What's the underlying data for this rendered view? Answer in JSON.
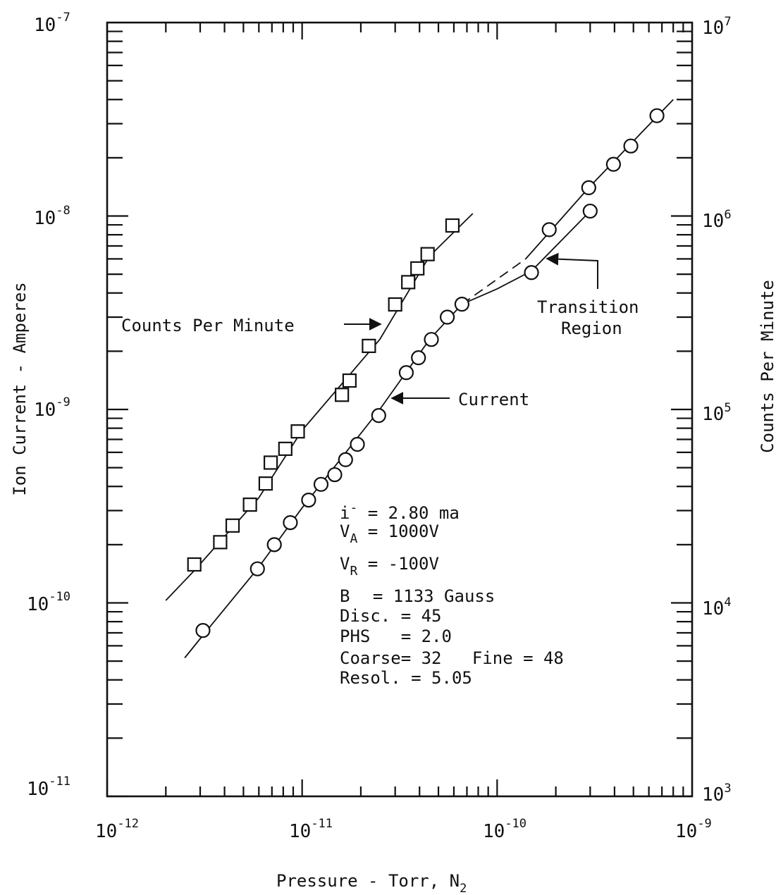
{
  "chart_data": {
    "type": "scatter",
    "xlabel": "Pressure - Torr, N",
    "xlabel_sub": "2",
    "ylabel": "Ion Current - Amperes",
    "y2label": "Counts Per Minute",
    "x_scale": "log",
    "y_scale": "log",
    "xlim": [
      1e-12,
      1e-09
    ],
    "ylim": [
      1e-11,
      1e-07
    ],
    "y2lim": [
      1000,
      10000000
    ],
    "grid": false,
    "x_ticks": [
      {
        "mant": "10",
        "exp": "-12"
      },
      {
        "mant": "10",
        "exp": "-11"
      },
      {
        "mant": "10",
        "exp": "-10"
      },
      {
        "mant": "10",
        "exp": "-9"
      }
    ],
    "y_ticks": [
      {
        "mant": "10",
        "exp": "-11"
      },
      {
        "mant": "10",
        "exp": "-10"
      },
      {
        "mant": "10",
        "exp": "-9"
      },
      {
        "mant": "10",
        "exp": "-8"
      },
      {
        "mant": "10",
        "exp": "-7"
      }
    ],
    "y2_ticks": [
      {
        "mant": "10",
        "exp": "3"
      },
      {
        "mant": "10",
        "exp": "4"
      },
      {
        "mant": "10",
        "exp": "5"
      },
      {
        "mant": "10",
        "exp": "6"
      },
      {
        "mant": "10",
        "exp": "7"
      }
    ],
    "series": [
      {
        "name": "Counts Per Minute",
        "marker": "square",
        "axis": "right",
        "x": [
          2.8e-12,
          3.8e-12,
          4.4e-12,
          5.4e-12,
          6.5e-12,
          6.9e-12,
          8.2e-12,
          9.5e-12,
          1.6e-11,
          1.75e-11,
          2.2e-11,
          3e-11,
          3.5e-11,
          3.9e-11,
          4.4e-11,
          5.9e-11
        ],
        "y": [
          15800,
          20600,
          25100,
          32200,
          41400,
          53100,
          62600,
          77000,
          119000,
          141000,
          213000,
          349000,
          455000,
          536000,
          635000,
          893000
        ]
      },
      {
        "name": "Current",
        "marker": "circle",
        "axis": "left",
        "x": [
          3.1e-12,
          5.9e-12,
          7.2e-12,
          8.7e-12,
          1.08e-11,
          1.25e-11,
          1.47e-11,
          1.67e-11,
          1.92e-11,
          2.47e-11,
          3.42e-11,
          3.95e-11,
          4.6e-11,
          5.55e-11,
          6.6e-11
        ],
        "y": [
          7.2e-11,
          1.5e-10,
          2e-10,
          2.6e-10,
          3.4e-10,
          4.1e-10,
          4.6e-10,
          5.5e-10,
          6.6e-10,
          9.3e-10,
          1.55e-09,
          1.85e-09,
          2.3e-09,
          3e-09,
          3.5e-09
        ]
      },
      {
        "name": "",
        "marker": "circle",
        "axis": "left",
        "x": [
          1.5e-10,
          3e-10
        ],
        "y": [
          5.1e-09,
          1.06e-08
        ]
      },
      {
        "name": "",
        "marker": "circle",
        "axis": "left",
        "x": [
          1.85e-10,
          2.95e-10,
          3.95e-10,
          4.85e-10,
          6.6e-10
        ],
        "y": [
          8.5e-09,
          1.4e-08,
          1.85e-08,
          2.3e-08,
          3.3e-08
        ]
      }
    ],
    "fit_lines": [
      {
        "axis": "right",
        "x": [
          2e-12,
          2.8e-12,
          6e-12,
          1e-11,
          2.5e-11,
          4.5e-11,
          7.5e-11
        ],
        "y": [
          10300,
          14700,
          35000,
          78000,
          230000,
          620000,
          1030000
        ],
        "dashed": false
      },
      {
        "axis": "left",
        "x": [
          2.5e-12,
          3.1e-12,
          5.9e-12,
          1e-11,
          2.5e-11,
          4.5e-11,
          6.6e-11
        ],
        "y": [
          5.2e-11,
          6.8e-11,
          1.5e-10,
          3.1e-10,
          1e-09,
          2.3e-09,
          3.5e-09
        ],
        "dashed": false
      },
      {
        "axis": "left",
        "x": [
          6.6e-11,
          1e-10,
          1.5e-10,
          3e-10
        ],
        "y": [
          3.5e-09,
          4.2e-09,
          5.2e-09,
          1.06e-08
        ],
        "dashed": false
      },
      {
        "axis": "left",
        "x": [
          6.6e-11,
          1.4e-10
        ],
        "y": [
          3.5e-09,
          6e-09
        ],
        "dashed": true
      },
      {
        "axis": "left",
        "x": [
          1.4e-10,
          2.95e-10,
          8e-10
        ],
        "y": [
          6e-09,
          1.4e-08,
          4e-08
        ],
        "dashed": false
      }
    ],
    "annotations": {
      "counts_label": "Counts Per Minute",
      "current_label": "Current",
      "transition_line1": "Transition",
      "transition_line2": "Region",
      "params": [
        {
          "base": "i",
          "sub": "",
          "sup": "-",
          "text": " = 2.80 ma"
        },
        {
          "base": "V",
          "sub": "A",
          "sup": "",
          "text": " = 1000V"
        },
        {
          "base": "V",
          "sub": "R",
          "sup": "",
          "text": " = -100V"
        },
        {
          "base": "B",
          "sub": "",
          "sup": "",
          "text": "  = 1133 Gauss"
        },
        {
          "base": "Disc. = 45",
          "sub": "",
          "sup": "",
          "text": ""
        },
        {
          "base": "PHS   = 2.0",
          "sub": "",
          "sup": "",
          "text": ""
        },
        {
          "base": "Coarse= 32   Fine = 48",
          "sub": "",
          "sup": "",
          "text": ""
        },
        {
          "base": "Resol. = 5.05",
          "sub": "",
          "sup": "",
          "text": ""
        }
      ]
    }
  }
}
